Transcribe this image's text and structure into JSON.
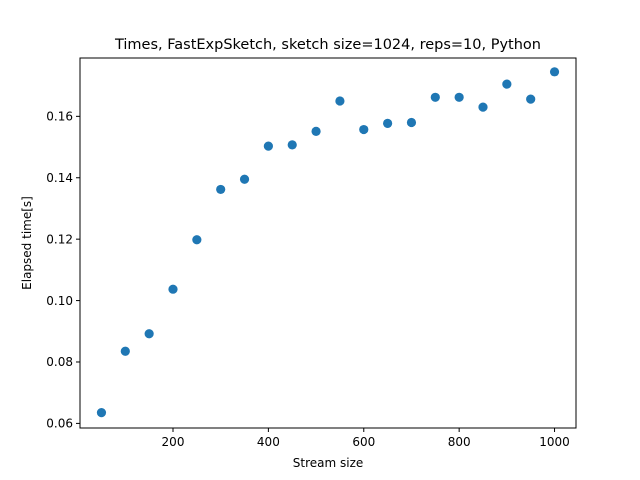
{
  "chart_data": {
    "type": "scatter",
    "title": "Times, FastExpSketch, sketch size=1024, reps=10, Python",
    "xlabel": "Stream size",
    "ylabel": "Elapsed time[s]",
    "xlim": [
      5,
      1045
    ],
    "ylim": [
      0.0585,
      0.179
    ],
    "xticks": [
      200,
      400,
      600,
      800,
      1000
    ],
    "yticks": [
      0.06,
      0.08,
      0.1,
      0.12,
      0.14,
      0.16
    ],
    "xtick_labels": [
      "200",
      "400",
      "600",
      "800",
      "1000"
    ],
    "ytick_labels": [
      "0.06",
      "0.08",
      "0.10",
      "0.12",
      "0.14",
      "0.16"
    ],
    "grid": false,
    "marker_color": "#1f77b4",
    "series": [
      {
        "x": [
          50,
          100,
          150,
          200,
          250,
          300,
          350,
          400,
          450,
          500,
          550,
          600,
          650,
          700,
          750,
          800,
          850,
          900,
          950,
          1000
        ],
        "y": [
          0.0635,
          0.0835,
          0.0892,
          0.1037,
          0.1198,
          0.1362,
          0.1395,
          0.1503,
          0.1507,
          0.1551,
          0.165,
          0.1557,
          0.1577,
          0.158,
          0.1662,
          0.1662,
          0.163,
          0.1705,
          0.1656,
          0.1745
        ]
      }
    ]
  }
}
